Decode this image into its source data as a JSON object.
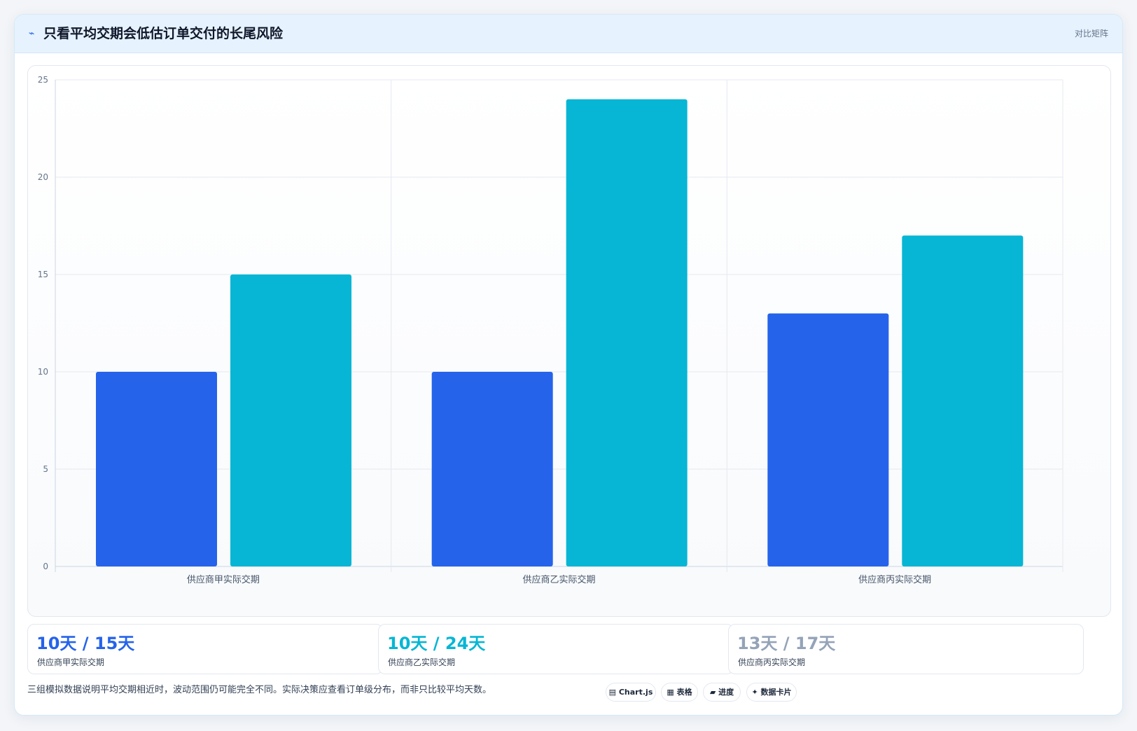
{
  "header": {
    "icon": "trend-icon",
    "title": "只看平均交期会低估订单交付的长尾风险",
    "tag": "对比矩阵"
  },
  "colors": {
    "series_a": "#2563eb",
    "series_b": "#06b6d4",
    "muted": "#94a3b8"
  },
  "chart_data": {
    "type": "bar",
    "categories": [
      "供应商甲实际交期",
      "供应商乙实际交期",
      "供应商丙实际交期"
    ],
    "series": [
      {
        "values": [
          10,
          10,
          13
        ],
        "color": "#2563eb"
      },
      {
        "values": [
          15,
          24,
          17
        ],
        "color": "#06b6d4"
      }
    ],
    "ylim": [
      0,
      25
    ],
    "yticks": [
      0,
      5,
      10,
      15,
      20,
      25
    ],
    "grid": true,
    "legend": "none"
  },
  "stats": [
    {
      "value": "10天 / 15天",
      "label": "供应商甲实际交期",
      "color": "#2563eb"
    },
    {
      "value": "10天 / 24天",
      "label": "供应商乙实际交期",
      "color": "#06b6d4"
    },
    {
      "value": "13天 / 17天",
      "label": "供应商丙实际交期",
      "color": "#94a3b8"
    }
  ],
  "footer": {
    "note": "三组模拟数据说明平均交期相近时，波动范围仍可能完全不同。实际决策应查看订单级分布，而非只比较平均天数。",
    "pills": [
      {
        "icon": "chart-icon",
        "glyph": "▤",
        "label": "Chart.js"
      },
      {
        "icon": "table-icon",
        "glyph": "▦",
        "label": "表格"
      },
      {
        "icon": "progress-icon",
        "glyph": "▰",
        "label": "进度"
      },
      {
        "icon": "card-icon",
        "glyph": "✦",
        "label": "数据卡片"
      }
    ]
  }
}
